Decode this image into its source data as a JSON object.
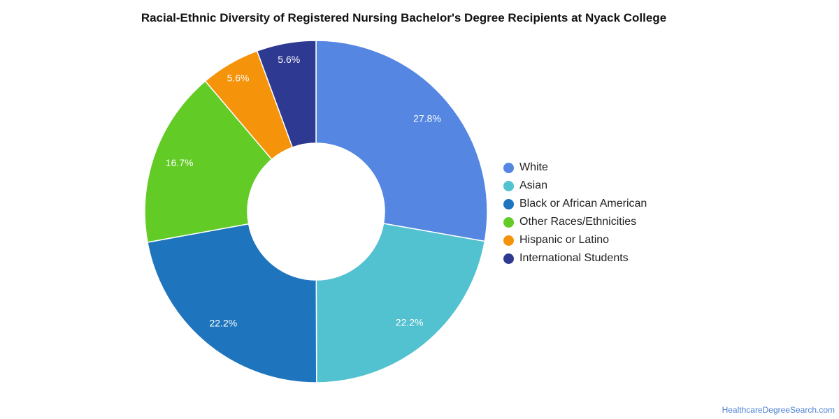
{
  "chart_data": {
    "type": "pie",
    "title": "Racial-Ethnic Diversity of Registered Nursing Bachelor's Degree Recipients at Nyack College",
    "donut": true,
    "legend_position": "right",
    "slices": [
      {
        "label": "White",
        "value": 27.8,
        "display": "27.8%",
        "color": "#5486e2"
      },
      {
        "label": "Asian",
        "value": 22.2,
        "display": "22.2%",
        "color": "#52c1d0"
      },
      {
        "label": "Black or African American",
        "value": 22.2,
        "display": "22.2%",
        "color": "#1e74bd"
      },
      {
        "label": "Other Races/Ethnicities",
        "value": 16.7,
        "display": "16.7%",
        "color": "#62cb25"
      },
      {
        "label": "Hispanic or Latino",
        "value": 5.6,
        "display": "5.6%",
        "color": "#f5930a"
      },
      {
        "label": "International Students",
        "value": 5.6,
        "display": "5.6%",
        "color": "#2e3a92"
      }
    ]
  },
  "source": "HealthcareDegreeSearch.com"
}
